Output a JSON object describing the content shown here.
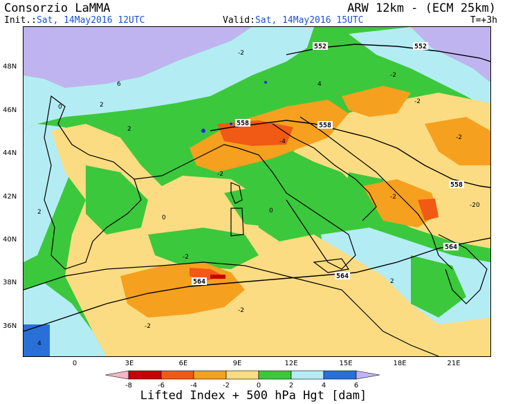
{
  "header": {
    "org": "Consorzio LaMMA",
    "model": "ARW 12km - (ECM 25km)",
    "init_label": "Init.:",
    "init_value": "Sat, 14May2016 12UTC",
    "valid_label": "Valid:",
    "valid_value": "Sat, 14May2016 15UTC",
    "step": "T=+3h"
  },
  "axes": {
    "lat_labels": [
      "48N",
      "46N",
      "44N",
      "42N",
      "40N",
      "38N",
      "36N"
    ],
    "lon_labels": [
      "0",
      "3E",
      "6E",
      "9E",
      "12E",
      "15E",
      "18E",
      "21E"
    ]
  },
  "colors": {
    "lvl_-8": "#f6b6c8",
    "lvl_-6": "#c80000",
    "lvl_-4": "#f05a14",
    "lvl_-2": "#f5a01e",
    "lvl_0": "#fcdc82",
    "lvl_2": "#3cc83c",
    "lvl_4": "#b4ecf4",
    "lvl_6": "#2870d8",
    "lvl_8": "#c0b4f0",
    "coast": "#000000",
    "water": "#1e28f0"
  },
  "colorbar": {
    "ticks": [
      "-8",
      "-6",
      "-4",
      "-2",
      "0",
      "2",
      "4",
      "6"
    ],
    "title": "Lifted Index + 500 hPa Hgt [dam]"
  },
  "map": {
    "contour_labels": [
      "552",
      "552",
      "558",
      "558",
      "558",
      "564",
      "564",
      "564"
    ],
    "li_labels": [
      "-2",
      "0",
      "2",
      "4",
      "6",
      "-4",
      "-20"
    ]
  }
}
